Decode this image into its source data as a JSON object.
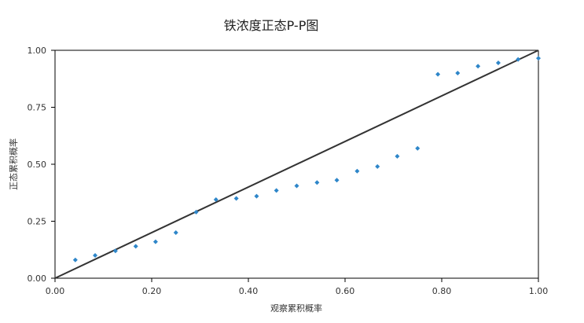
{
  "chart_data": {
    "type": "scatter",
    "title": "铁浓度正态P-P图",
    "xlabel": "观察累积概率",
    "ylabel": "正态累积概率",
    "xlim": [
      0,
      1
    ],
    "ylim": [
      0,
      1
    ],
    "x_ticks": [
      0,
      0.2,
      0.4,
      0.6,
      0.8,
      1.0
    ],
    "x_tick_labels": [
      "0.00",
      "0.20",
      "0.40",
      "0.60",
      "0.80",
      "1.00"
    ],
    "y_ticks": [
      0,
      0.25,
      0.5,
      0.75,
      1.0
    ],
    "y_tick_labels": [
      "0.00",
      "0.25",
      "0.50",
      "0.75",
      "1.00"
    ],
    "grid": false,
    "reference_line": {
      "x": [
        0,
        1
      ],
      "y": [
        0,
        1
      ],
      "color": "#333333"
    },
    "point_color": "#2e86c9",
    "points": [
      {
        "x": 0.042,
        "y": 0.08
      },
      {
        "x": 0.083,
        "y": 0.1
      },
      {
        "x": 0.125,
        "y": 0.12
      },
      {
        "x": 0.167,
        "y": 0.14
      },
      {
        "x": 0.208,
        "y": 0.16
      },
      {
        "x": 0.25,
        "y": 0.2
      },
      {
        "x": 0.292,
        "y": 0.29
      },
      {
        "x": 0.333,
        "y": 0.345
      },
      {
        "x": 0.375,
        "y": 0.35
      },
      {
        "x": 0.417,
        "y": 0.36
      },
      {
        "x": 0.458,
        "y": 0.385
      },
      {
        "x": 0.5,
        "y": 0.405
      },
      {
        "x": 0.542,
        "y": 0.42
      },
      {
        "x": 0.583,
        "y": 0.43
      },
      {
        "x": 0.625,
        "y": 0.47
      },
      {
        "x": 0.667,
        "y": 0.49
      },
      {
        "x": 0.708,
        "y": 0.535
      },
      {
        "x": 0.75,
        "y": 0.57
      },
      {
        "x": 0.792,
        "y": 0.895
      },
      {
        "x": 0.833,
        "y": 0.9
      },
      {
        "x": 0.875,
        "y": 0.93
      },
      {
        "x": 0.917,
        "y": 0.945
      },
      {
        "x": 0.958,
        "y": 0.96
      },
      {
        "x": 1.0,
        "y": 0.965
      }
    ]
  }
}
